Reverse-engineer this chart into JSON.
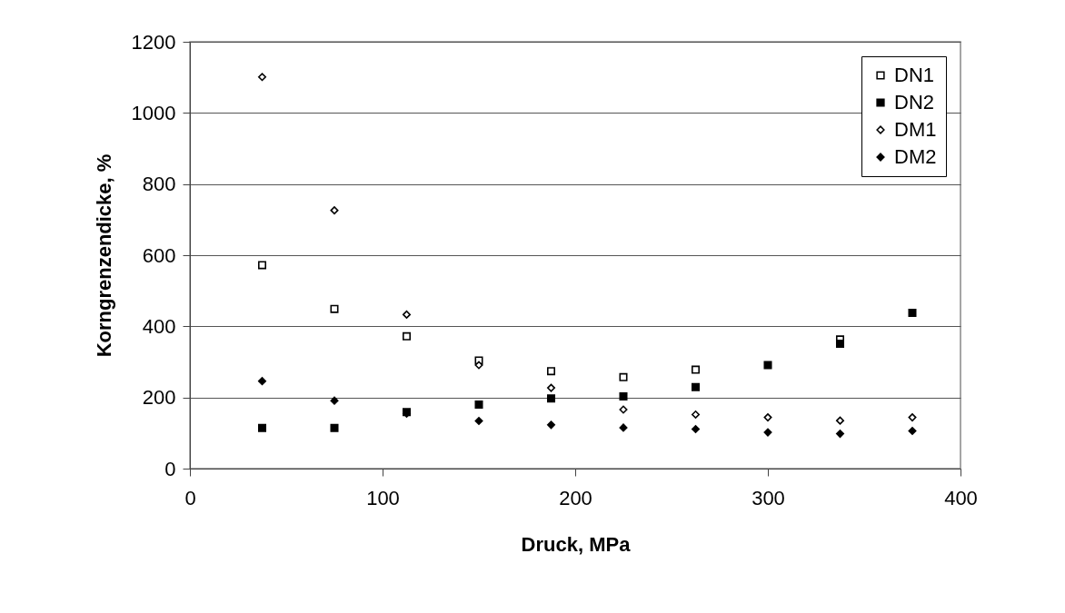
{
  "chart_data": {
    "type": "scatter",
    "xlabel": "Druck, MPa",
    "ylabel": "Korngrenzendicke, %",
    "x": [
      37.5,
      75,
      112.5,
      150,
      187.5,
      225,
      262.5,
      300,
      337.5,
      375
    ],
    "xlim": [
      0,
      400
    ],
    "xticks": [
      0,
      100,
      200,
      300,
      400
    ],
    "ylim": [
      0,
      1200
    ],
    "yticks": [
      0,
      200,
      400,
      600,
      800,
      1000,
      1200
    ],
    "grid": "y",
    "legend": "top right",
    "series": [
      {
        "name": "DN1",
        "color": "#ffffff",
        "marker": "square",
        "values": [
          572,
          449,
          372,
          304,
          274,
          257,
          278,
          null,
          363,
          null
        ]
      },
      {
        "name": "DN2",
        "color": "#000000",
        "marker": "square",
        "values": [
          114,
          114,
          159,
          180,
          197,
          203,
          229,
          291,
          351,
          438
        ]
      },
      {
        "name": "DM1",
        "color": "#ffffff",
        "marker": "diamond",
        "values": [
          1101,
          726,
          433,
          291,
          227,
          166,
          152,
          144,
          135,
          144
        ]
      },
      {
        "name": "DM2",
        "color": "#000000",
        "marker": "diamond",
        "values": [
          246,
          191,
          155,
          134,
          123,
          115,
          111,
          102,
          98,
          106
        ]
      }
    ]
  }
}
